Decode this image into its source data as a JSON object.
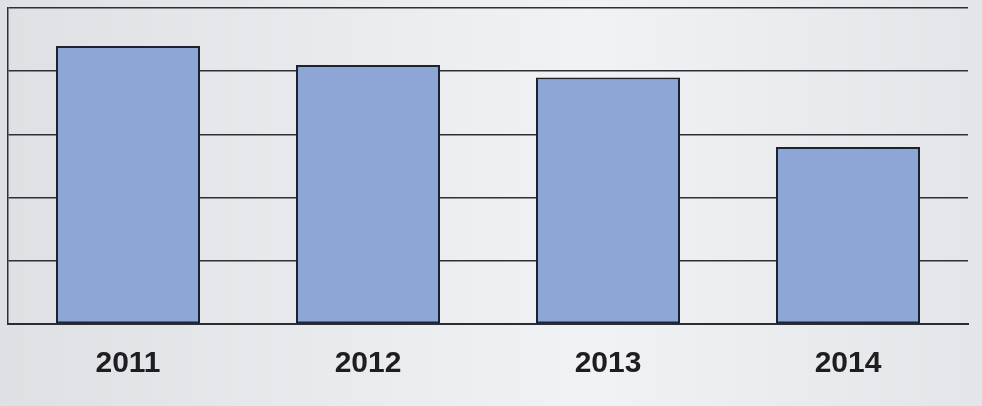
{
  "chart_data": {
    "type": "bar",
    "categories": [
      "2011",
      "2012",
      "2013",
      "2014"
    ],
    "values": [
      4.4,
      4.1,
      3.9,
      2.8
    ],
    "color": "#8da6d6",
    "ylim": [
      0,
      5
    ],
    "yticks": [
      0,
      1,
      2,
      3,
      4,
      5
    ],
    "grid": true,
    "tick_labels": "x"
  }
}
